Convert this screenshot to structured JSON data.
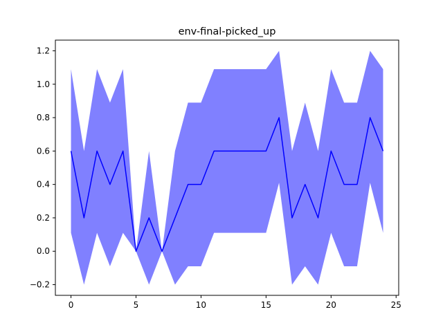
{
  "chart_data": {
    "type": "line",
    "title": "env-final-picked_up",
    "xlabel": "",
    "ylabel": "",
    "xlim": [
      -1.2,
      25.2
    ],
    "ylim": [
      -0.264,
      1.264
    ],
    "x_ticks": [
      0,
      5,
      10,
      15,
      20,
      25
    ],
    "x_tick_labels": [
      "0",
      "5",
      "10",
      "15",
      "20",
      "25"
    ],
    "y_ticks": [
      -0.2,
      0.0,
      0.2,
      0.4,
      0.6,
      0.8,
      1.0,
      1.2
    ],
    "y_tick_labels": [
      "−0.2",
      "0.0",
      "0.2",
      "0.4",
      "0.6",
      "0.8",
      "1.0",
      "1.2"
    ],
    "grid": false,
    "legend": "none",
    "colors": {
      "line": "#0000ff",
      "band": "#8080ff"
    },
    "series": [
      {
        "x": [
          0,
          1,
          2,
          3,
          4,
          5,
          6,
          7,
          8,
          9,
          10,
          11,
          12,
          13,
          14,
          15,
          16,
          17,
          18,
          19,
          20,
          21,
          22,
          23,
          24
        ],
        "values": [
          0.6,
          0.2,
          0.6,
          0.4,
          0.6,
          0.0,
          0.2,
          0.0,
          0.2,
          0.4,
          0.4,
          0.6,
          0.6,
          0.6,
          0.6,
          0.6,
          0.8,
          0.2,
          0.4,
          0.2,
          0.6,
          0.4,
          0.4,
          0.8,
          0.6
        ],
        "lower": [
          0.11,
          -0.2,
          0.11,
          -0.09,
          0.11,
          0.0,
          -0.2,
          0.0,
          -0.2,
          -0.09,
          -0.09,
          0.11,
          0.11,
          0.11,
          0.11,
          0.11,
          0.41,
          -0.2,
          -0.09,
          -0.2,
          0.11,
          -0.09,
          -0.09,
          0.41,
          0.11
        ],
        "upper": [
          1.09,
          0.6,
          1.09,
          0.89,
          1.09,
          0.0,
          0.6,
          0.0,
          0.6,
          0.89,
          0.89,
          1.09,
          1.09,
          1.09,
          1.09,
          1.09,
          1.2,
          0.6,
          0.89,
          0.6,
          1.09,
          0.89,
          0.89,
          1.2,
          1.09
        ]
      }
    ]
  }
}
